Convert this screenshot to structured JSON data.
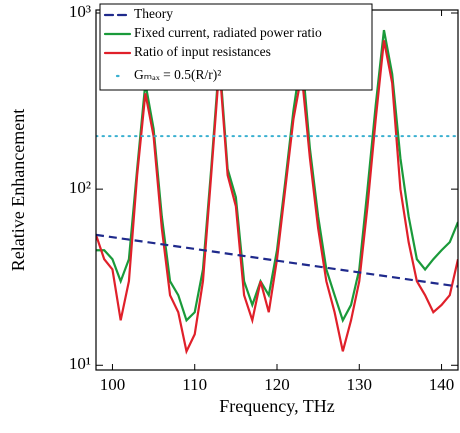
{
  "chart_data": {
    "type": "line",
    "x_label": "Frequency, THz",
    "y_label": "Relative Enhancement",
    "xlim": [
      98,
      142
    ],
    "ylim": [
      9.4,
      1040
    ],
    "log_y": true,
    "xticks": [
      100,
      110,
      120,
      130,
      140
    ],
    "yticks": [
      {
        "value": 10,
        "label": "10¹"
      },
      {
        "value": 100,
        "label": "10²"
      },
      {
        "value": 1000,
        "label": "10³"
      }
    ],
    "x": [
      98,
      99,
      100,
      101,
      102,
      103,
      104,
      105,
      106,
      107,
      108,
      109,
      110,
      111,
      112,
      113,
      114,
      115,
      116,
      117,
      118,
      119,
      120,
      121,
      122,
      123,
      124,
      125,
      126,
      127,
      128,
      129,
      130,
      131,
      132,
      133,
      134,
      135,
      136,
      137,
      138,
      139,
      140,
      141,
      142
    ],
    "series": [
      {
        "name": "Theory",
        "color": "#1f2a8c",
        "style": "dashed",
        "x": [
          98,
          142
        ],
        "values": [
          55,
          28
        ]
      },
      {
        "name": "Fixed current, radiated power ratio",
        "color": "#1a9a3a",
        "style": "solid",
        "values": [
          45,
          45,
          40,
          30,
          40,
          130,
          400,
          220,
          70,
          30,
          25,
          18,
          20,
          35,
          130,
          550,
          130,
          90,
          30,
          22,
          30,
          25,
          45,
          110,
          280,
          580,
          170,
          70,
          35,
          25,
          18,
          22,
          35,
          100,
          300,
          800,
          450,
          150,
          70,
          40,
          35,
          40,
          45,
          50,
          65
        ]
      },
      {
        "name": "Ratio of input resistances",
        "color": "#e0202a",
        "style": "solid",
        "values": [
          55,
          40,
          35,
          18,
          30,
          120,
          350,
          200,
          60,
          25,
          20,
          12,
          15,
          30,
          120,
          500,
          120,
          80,
          25,
          18,
          30,
          20,
          40,
          100,
          250,
          450,
          150,
          60,
          30,
          20,
          12,
          18,
          30,
          80,
          250,
          700,
          400,
          100,
          50,
          30,
          25,
          20,
          22,
          25,
          40
        ]
      },
      {
        "name": "Gₘₐₓ = 0.5(R/r)²",
        "color": "#3ab0d0",
        "style": "dotted",
        "x": [
          98,
          142
        ],
        "values": [
          200,
          200
        ]
      }
    ]
  }
}
